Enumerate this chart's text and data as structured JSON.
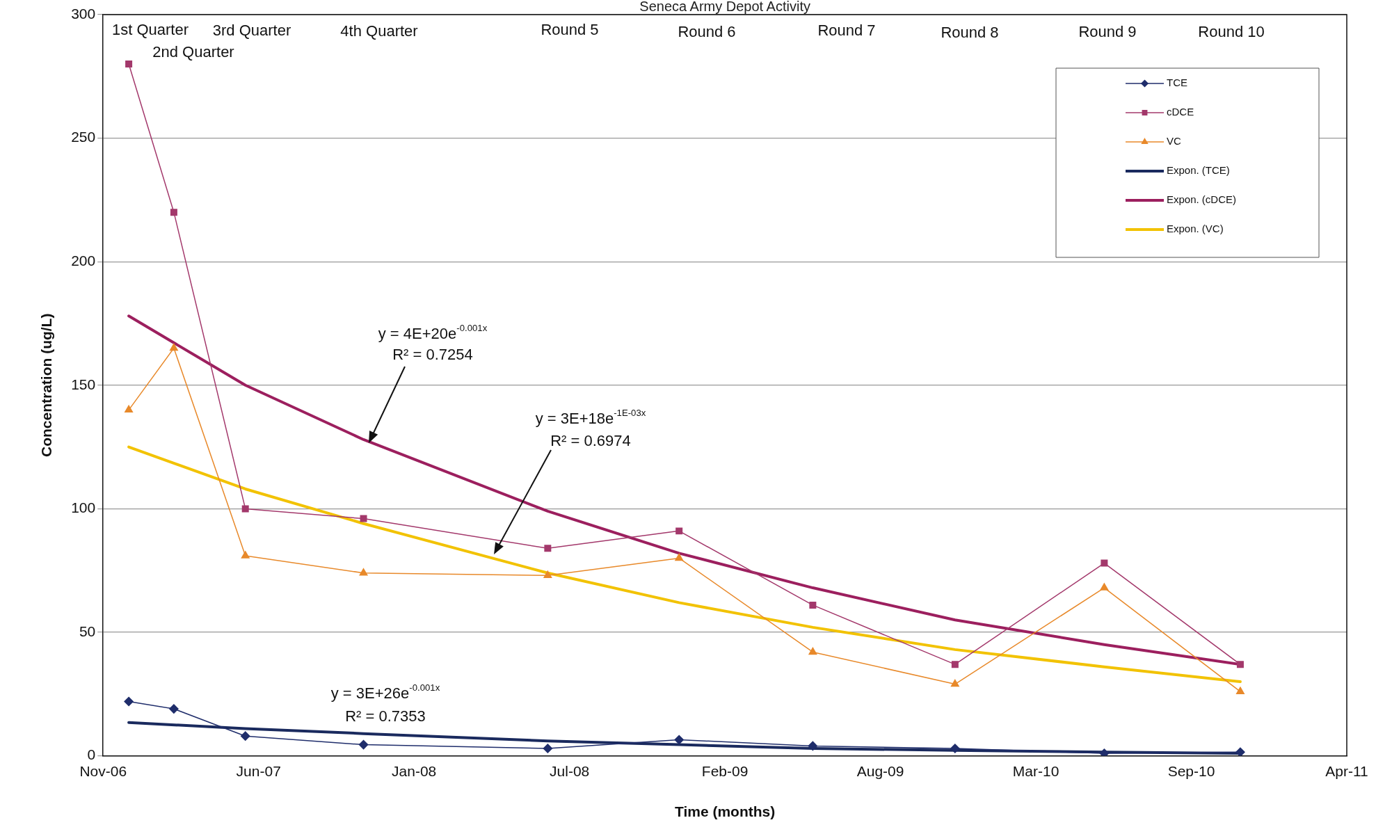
{
  "chart_data": {
    "type": "line",
    "title": "Seneca Army Depot Activity",
    "xlabel": "Time (months)",
    "ylabel": "Concentration (ug/L)",
    "xlim": [
      "2006-11-28",
      "2011-04-16"
    ],
    "xticks": [
      {
        "value": "2006-11-28",
        "label": "Nov-06"
      },
      {
        "value": "2007-06-16",
        "label": "Jun-07"
      },
      {
        "value": "2008-01-02",
        "label": "Jan-08"
      },
      {
        "value": "2008-07-20",
        "label": "Jul-08"
      },
      {
        "value": "2009-02-05",
        "label": "Feb-09"
      },
      {
        "value": "2009-08-24",
        "label": "Aug-09"
      },
      {
        "value": "2010-03-12",
        "label": "Mar-10"
      },
      {
        "value": "2010-09-28",
        "label": "Sep-10"
      },
      {
        "value": "2011-04-16",
        "label": "Apr-11"
      }
    ],
    "ylim": [
      0,
      300
    ],
    "yticks": [
      0,
      50,
      100,
      150,
      200,
      250,
      300
    ],
    "grid": "y",
    "legend": "top right",
    "series": [
      {
        "name": "TCE",
        "color": "#1f2d6b",
        "marker": "diamond",
        "x": [
          "2006-12-31",
          "2007-02-27",
          "2007-05-30",
          "2007-10-29",
          "2008-06-22",
          "2008-12-08",
          "2009-05-29",
          "2009-11-28",
          "2010-06-08",
          "2010-11-30"
        ],
        "values": [
          22,
          19,
          8,
          4.5,
          3,
          6.5,
          4,
          3,
          1,
          1.5
        ]
      },
      {
        "name": "cDCE",
        "color": "#a3386b",
        "marker": "square",
        "x": [
          "2006-12-31",
          "2007-02-27",
          "2007-05-30",
          "2007-10-29",
          "2008-06-22",
          "2008-12-08",
          "2009-05-29",
          "2009-11-28",
          "2010-06-08",
          "2010-11-30"
        ],
        "values": [
          280,
          220,
          100,
          96,
          84,
          91,
          61,
          37,
          78,
          37
        ]
      },
      {
        "name": "VC",
        "color": "#e8892a",
        "marker": "triangle",
        "x": [
          "2006-12-31",
          "2007-02-27",
          "2007-05-30",
          "2007-10-29",
          "2008-06-22",
          "2008-12-08",
          "2009-05-29",
          "2009-11-28",
          "2010-06-08",
          "2010-11-30"
        ],
        "values": [
          140,
          165,
          81,
          74,
          73,
          80,
          42,
          29,
          68,
          26
        ]
      },
      {
        "name": "Expon. (TCE)",
        "color": "#1a2a5e",
        "marker": "none",
        "x": [
          "2006-12-31",
          "2007-05-30",
          "2007-10-29",
          "2008-06-22",
          "2008-12-08",
          "2009-05-29",
          "2009-11-28",
          "2010-06-08",
          "2010-11-30"
        ],
        "values": [
          13.5,
          11,
          9,
          6,
          4.5,
          3,
          2.2,
          1.5,
          1
        ]
      },
      {
        "name": "Expon. (cDCE)",
        "color": "#9c1f5e",
        "marker": "none",
        "x": [
          "2006-12-31",
          "2007-05-30",
          "2007-10-29",
          "2008-06-22",
          "2008-12-08",
          "2009-05-29",
          "2009-11-28",
          "2010-06-08",
          "2010-11-30"
        ],
        "values": [
          178,
          150,
          128,
          99,
          82,
          68,
          55,
          45,
          37
        ]
      },
      {
        "name": "Expon. (VC)",
        "color": "#f2c200",
        "marker": "none",
        "x": [
          "2006-12-31",
          "2007-05-30",
          "2007-10-29",
          "2008-06-22",
          "2008-12-08",
          "2009-05-29",
          "2009-11-28",
          "2010-06-08",
          "2010-11-30"
        ],
        "values": [
          125,
          108,
          94,
          74,
          62,
          52,
          43,
          36,
          30
        ]
      }
    ],
    "annotations": [
      "1st Quarter",
      "2nd Quarter",
      "3rd Quarter",
      "4th Quarter",
      "Round 5",
      "Round 6",
      "Round 7",
      "Round 8",
      "Round 9",
      "Round 10",
      "y = 4E+20e$^{-0.001x}$",
      "R² = 0.7254",
      "y = 3E+18e$^{-1E-03x}$",
      "R² = 0.6974",
      "y = 3E+26e$^{-0.001x}$",
      "R² = 0.7353"
    ]
  }
}
